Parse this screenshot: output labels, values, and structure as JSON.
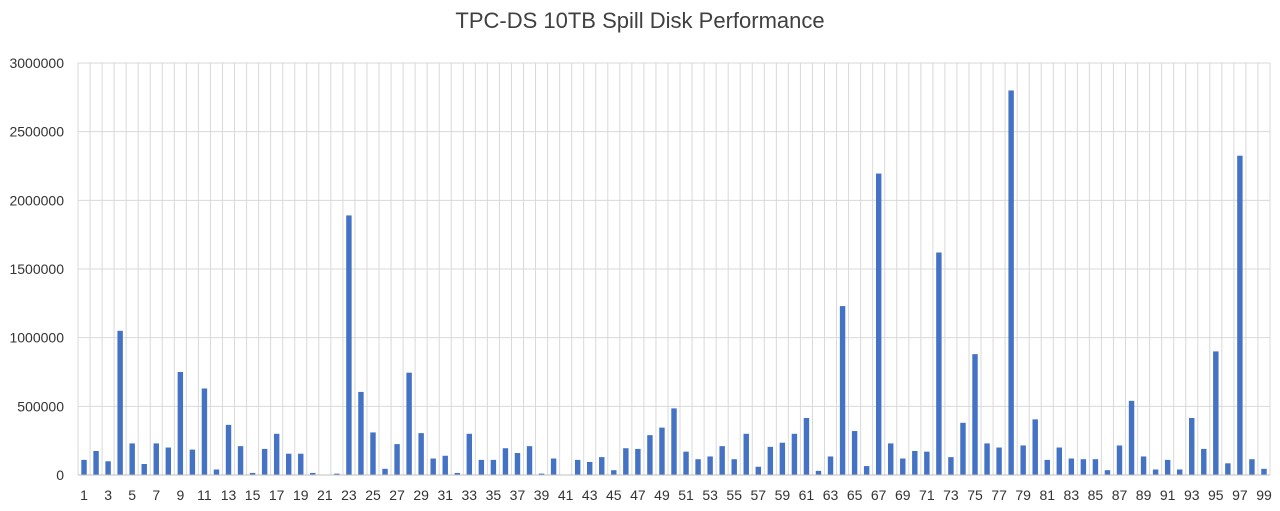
{
  "chart_data": {
    "type": "bar",
    "title": "TPC-DS 10TB Spill Disk Performance",
    "xlabel": "",
    "ylabel": "",
    "ylim": [
      0,
      3000000
    ],
    "yticks": [
      0,
      500000,
      1000000,
      1500000,
      2000000,
      2500000,
      3000000
    ],
    "ytick_labels": [
      "0",
      "500000",
      "1000000",
      "1500000",
      "2000000",
      "2500000",
      "3000000"
    ],
    "grid": true,
    "legend": "none",
    "bar_color": "#4472C4",
    "categories": [
      "1",
      "2",
      "3",
      "4",
      "5",
      "6",
      "7",
      "8",
      "9",
      "10",
      "11",
      "12",
      "13",
      "14",
      "15",
      "16",
      "17",
      "18",
      "19",
      "20",
      "21",
      "22",
      "23",
      "24",
      "25",
      "26",
      "27",
      "28",
      "29",
      "30",
      "31",
      "32",
      "33",
      "34",
      "35",
      "36",
      "37",
      "38",
      "39",
      "40",
      "41",
      "42",
      "43",
      "44",
      "45",
      "46",
      "47",
      "48",
      "49",
      "50",
      "51",
      "52",
      "53",
      "54",
      "55",
      "56",
      "57",
      "58",
      "59",
      "60",
      "61",
      "62",
      "63",
      "64",
      "65",
      "66",
      "67",
      "68",
      "69",
      "70",
      "71",
      "72",
      "73",
      "74",
      "75",
      "76",
      "77",
      "78",
      "79",
      "80",
      "81",
      "82",
      "83",
      "84",
      "85",
      "86",
      "87",
      "88",
      "89",
      "90",
      "91",
      "92",
      "93",
      "94",
      "95",
      "96",
      "97",
      "98",
      "99"
    ],
    "xtick_labels": [
      "1",
      "3",
      "5",
      "7",
      "9",
      "11",
      "13",
      "15",
      "17",
      "19",
      "21",
      "23",
      "25",
      "27",
      "29",
      "31",
      "33",
      "35",
      "37",
      "39",
      "41",
      "43",
      "45",
      "47",
      "49",
      "51",
      "53",
      "55",
      "57",
      "59",
      "61",
      "63",
      "65",
      "67",
      "69",
      "71",
      "73",
      "75",
      "77",
      "79",
      "81",
      "83",
      "85",
      "87",
      "89",
      "91",
      "93",
      "95",
      "97",
      "99"
    ],
    "values": [
      110000,
      175000,
      100000,
      1050000,
      230000,
      80000,
      230000,
      200000,
      750000,
      185000,
      630000,
      40000,
      365000,
      210000,
      15000,
      190000,
      300000,
      155000,
      155000,
      15000,
      0,
      10000,
      1890000,
      605000,
      310000,
      45000,
      225000,
      745000,
      305000,
      120000,
      140000,
      15000,
      300000,
      110000,
      110000,
      195000,
      160000,
      210000,
      10000,
      120000,
      0,
      110000,
      95000,
      130000,
      35000,
      195000,
      190000,
      290000,
      345000,
      485000,
      170000,
      115000,
      135000,
      210000,
      115000,
      300000,
      60000,
      205000,
      235000,
      300000,
      415000,
      30000,
      135000,
      1230000,
      320000,
      65000,
      2195000,
      230000,
      120000,
      175000,
      170000,
      1620000,
      130000,
      380000,
      880000,
      230000,
      200000,
      2800000,
      215000,
      405000,
      110000,
      200000,
      120000,
      115000,
      115000,
      35000,
      215000,
      540000,
      135000,
      40000,
      110000,
      40000,
      415000,
      190000,
      900000,
      85000,
      2325000,
      115000,
      45000
    ]
  }
}
